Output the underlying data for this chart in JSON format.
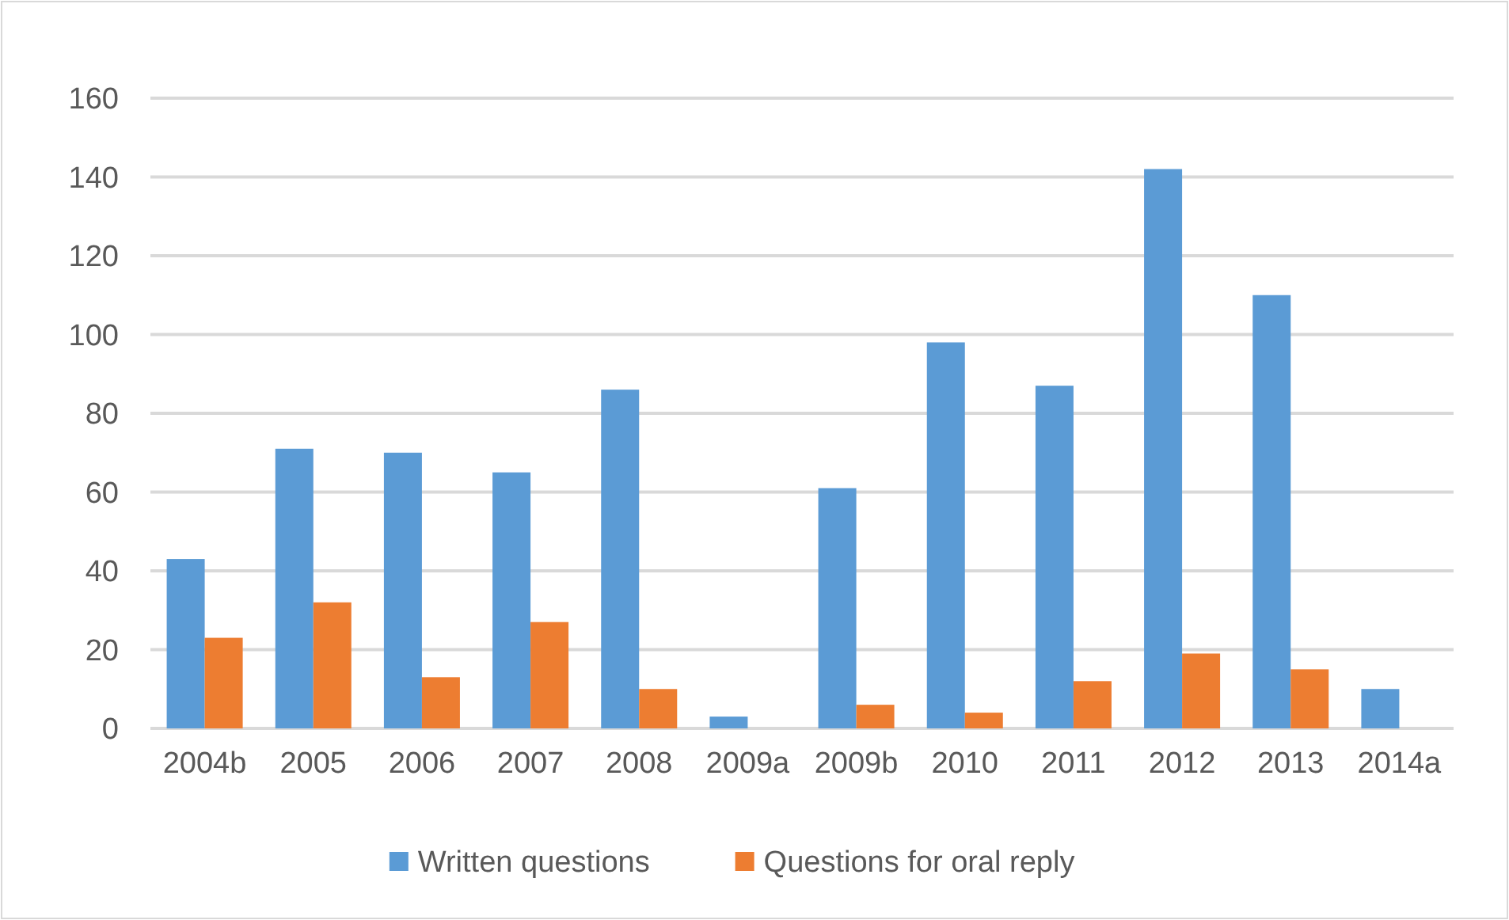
{
  "chart_data": {
    "type": "bar",
    "categories": [
      "2004b",
      "2005",
      "2006",
      "2007",
      "2008",
      "2009a",
      "2009b",
      "2010",
      "2011",
      "2012",
      "2013",
      "2014a"
    ],
    "series": [
      {
        "name": "Written questions",
        "color": "#5b9bd5",
        "values": [
          43,
          71,
          70,
          65,
          86,
          3,
          61,
          98,
          87,
          142,
          110,
          10
        ]
      },
      {
        "name": "Questions for oral reply",
        "color": "#ed7d31",
        "values": [
          23,
          32,
          13,
          27,
          10,
          0,
          6,
          4,
          12,
          19,
          15,
          0
        ]
      }
    ],
    "ylim": [
      0,
      160
    ],
    "yticks": [
      0,
      20,
      40,
      60,
      80,
      100,
      120,
      140,
      160
    ],
    "grid": "y",
    "legend": "bottom"
  }
}
